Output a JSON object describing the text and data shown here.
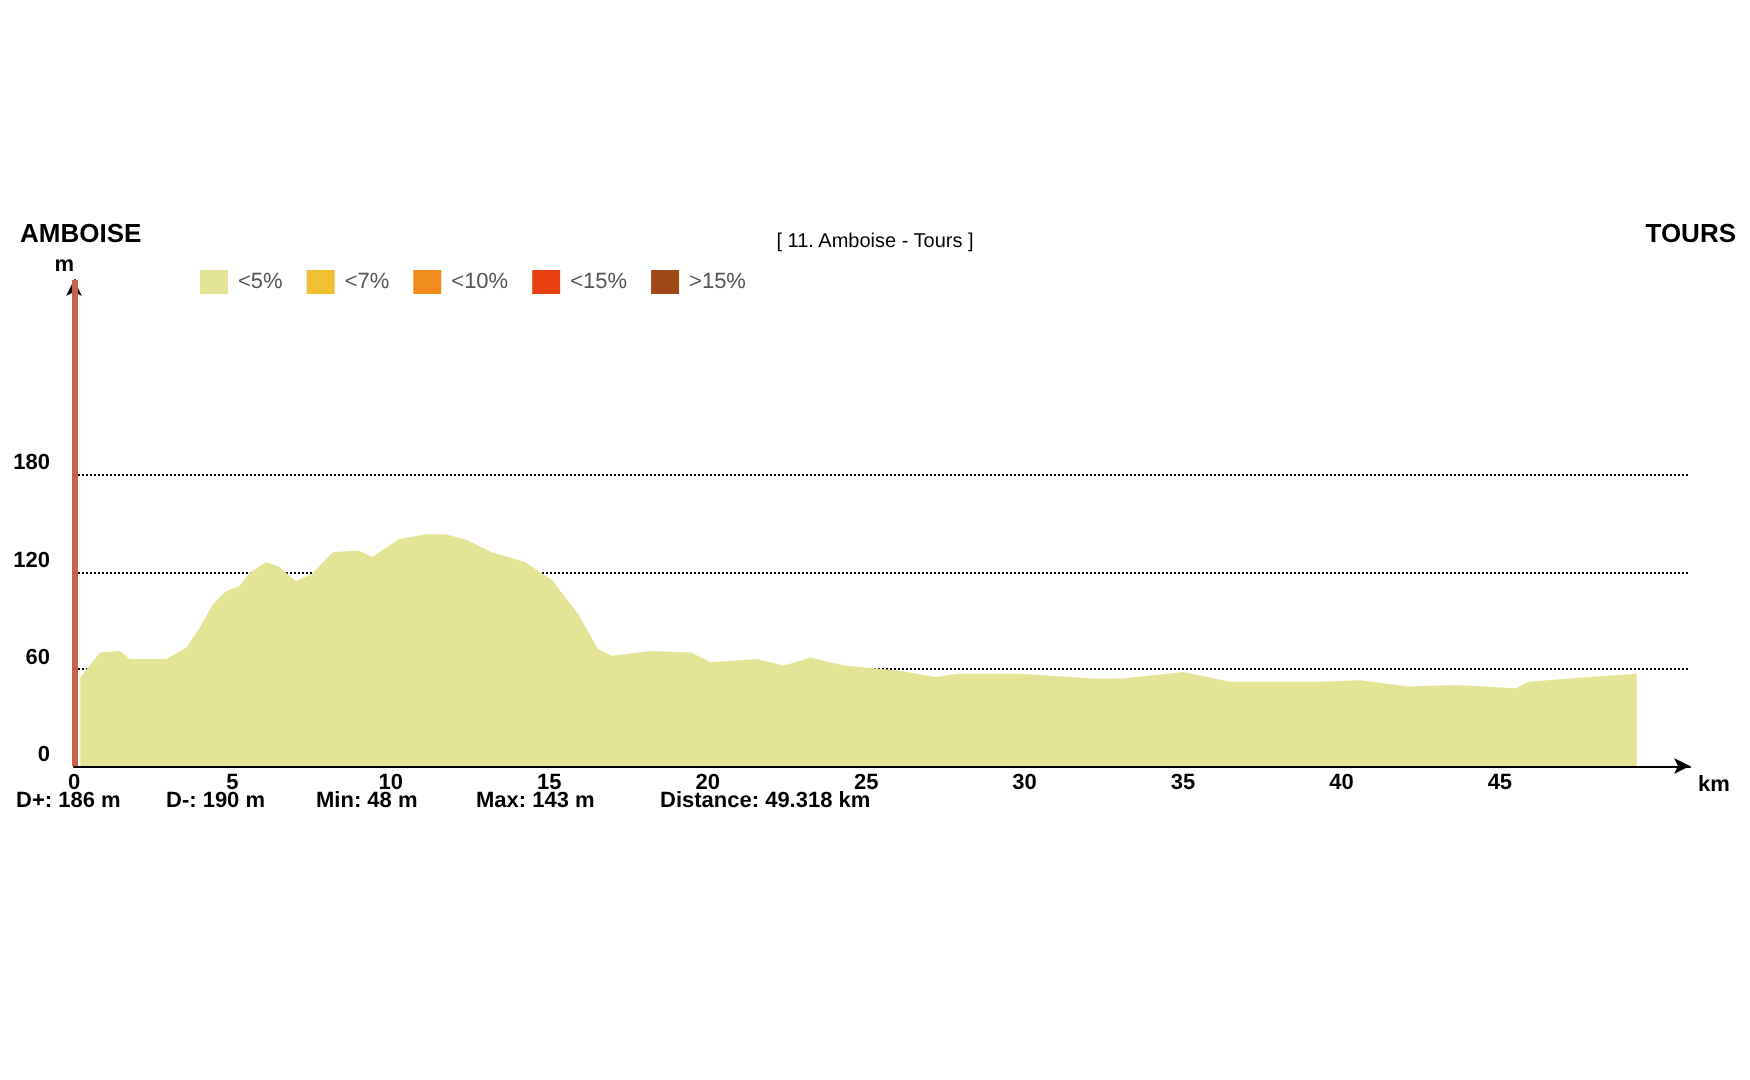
{
  "chart_data": {
    "type": "area",
    "title": "[ 11. Amboise - Tours ]",
    "xlabel": "km",
    "ylabel": "m",
    "annotations": [
      "AMBOISE",
      "TOURS",
      "D+: 186 m",
      "D-: 190 m",
      "Min: 48 m",
      "Max: 143 m",
      "Distance: 49.318 km"
    ],
    "xlim": [
      0,
      51
    ],
    "xticks": [
      0,
      5,
      10,
      15,
      20,
      25,
      30,
      35,
      40,
      45
    ],
    "ylim": [
      0,
      300
    ],
    "yticks": [
      0,
      60,
      120,
      180
    ],
    "grid": "y",
    "legend": "top left",
    "marker": "none",
    "ref_lines": [
      {
        "axis": "x",
        "value": 0,
        "color": "#c8604a"
      }
    ],
    "series": [
      {
        "name": "<5%",
        "color": "#e3e496",
        "x": [
          0.2,
          0.82,
          1.45,
          1.76,
          2.91,
          3.54,
          3.96,
          4.38,
          4.8,
          5.22,
          5.53,
          6.06,
          6.48,
          7.0,
          7.53,
          8.16,
          8.99,
          9.41,
          10.25,
          11.09,
          11.72,
          12.35,
          13.19,
          14.23,
          15.08,
          15.91,
          16.54,
          16.96,
          18.2,
          19.48,
          20.1,
          21.57,
          22.4,
          23.25,
          24.3,
          26.0,
          27.2,
          27.9,
          29.9,
          32.1,
          33.1,
          35.0,
          36.5,
          39.4,
          40.6,
          42.1,
          43.6,
          45.5,
          45.9,
          47.8,
          49.318
        ],
        "values": [
          55,
          70,
          71,
          66,
          66,
          73,
          85,
          100,
          108,
          111,
          119,
          126,
          123,
          114,
          119,
          132,
          133,
          129,
          140,
          143,
          143,
          140,
          132,
          126,
          115,
          94,
          72,
          68,
          71,
          70,
          64,
          66,
          62,
          67,
          62,
          59,
          55,
          57,
          57,
          54,
          54,
          58,
          52,
          52,
          53,
          49,
          50,
          48,
          52,
          55,
          57
        ]
      },
      {
        "name": "<7%",
        "color": "#f0c030"
      },
      {
        "name": "<10%",
        "color": "#f08c1c"
      },
      {
        "name": "<15%",
        "color": "#e84010"
      },
      {
        "name": ">15%",
        "color": "#a04818"
      }
    ]
  }
}
